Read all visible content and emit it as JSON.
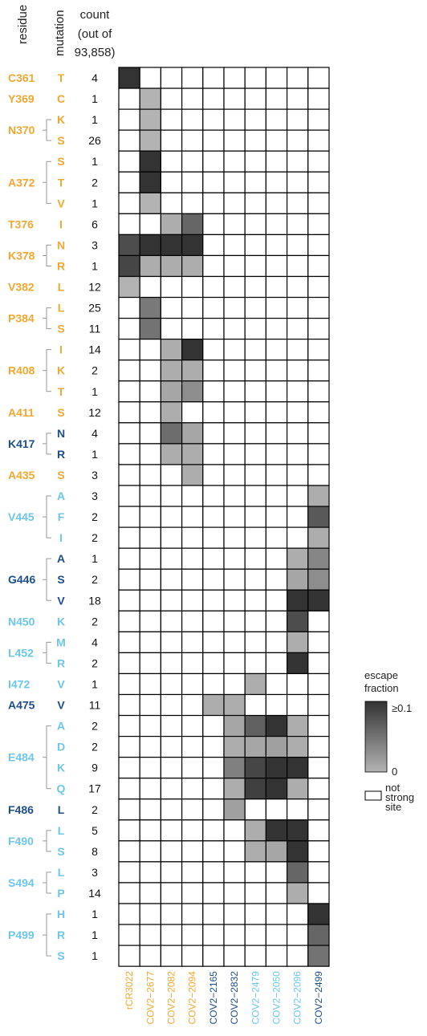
{
  "chart_data": {
    "type": "heatmap",
    "headers": {
      "residue": "residue",
      "mutation": "mutation",
      "count_lines": [
        "count",
        "(out of",
        "93,858)"
      ]
    },
    "colors": {
      "orange": "#F2A830",
      "dark_blue": "#1F4E8C",
      "light_blue": "#6CC7EA",
      "cell_border": "#000000",
      "escape_high": "#333333",
      "escape_low": "#b3b3b3"
    },
    "columns": [
      {
        "label": "rCR3022",
        "color": "orange"
      },
      {
        "label": "COV2−2677",
        "color": "orange"
      },
      {
        "label": "COV2−2082",
        "color": "orange"
      },
      {
        "label": "COV2−2094",
        "color": "orange"
      },
      {
        "label": "COV2−2165",
        "color": "dark_blue"
      },
      {
        "label": "COV2−2832",
        "color": "dark_blue"
      },
      {
        "label": "COV2−2479",
        "color": "light_blue"
      },
      {
        "label": "COV2−2050",
        "color": "light_blue"
      },
      {
        "label": "COV2−2096",
        "color": "light_blue"
      },
      {
        "label": "COV2−2499",
        "color": "dark_blue"
      }
    ],
    "groups": [
      {
        "residue": "C361",
        "color": "orange",
        "rows": [
          {
            "mutation": "T",
            "count": "4",
            "cells": [
              1,
              null,
              null,
              null,
              null,
              null,
              null,
              null,
              null,
              null
            ]
          }
        ]
      },
      {
        "residue": "Y369",
        "color": "orange",
        "rows": [
          {
            "mutation": "C",
            "count": "1",
            "cells": [
              null,
              0,
              null,
              null,
              null,
              null,
              null,
              null,
              null,
              null
            ]
          }
        ]
      },
      {
        "residue": "N370",
        "color": "orange",
        "rows": [
          {
            "mutation": "K",
            "count": "1",
            "cells": [
              null,
              0,
              null,
              null,
              null,
              null,
              null,
              null,
              null,
              null
            ]
          },
          {
            "mutation": "S",
            "count": "26",
            "cells": [
              null,
              0,
              null,
              null,
              null,
              null,
              null,
              null,
              null,
              null
            ]
          }
        ]
      },
      {
        "residue": "A372",
        "color": "orange",
        "rows": [
          {
            "mutation": "S",
            "count": "1",
            "cells": [
              null,
              1,
              null,
              null,
              null,
              null,
              null,
              null,
              null,
              null
            ]
          },
          {
            "mutation": "T",
            "count": "2",
            "cells": [
              null,
              1,
              null,
              null,
              null,
              null,
              null,
              null,
              null,
              null
            ]
          },
          {
            "mutation": "V",
            "count": "1",
            "cells": [
              null,
              0,
              null,
              null,
              null,
              null,
              null,
              null,
              null,
              null
            ]
          }
        ]
      },
      {
        "residue": "T376",
        "color": "orange",
        "rows": [
          {
            "mutation": "I",
            "count": "6",
            "cells": [
              null,
              null,
              0.05,
              0.6,
              null,
              null,
              null,
              null,
              null,
              null
            ]
          }
        ]
      },
      {
        "residue": "K378",
        "color": "orange",
        "rows": [
          {
            "mutation": "N",
            "count": "3",
            "cells": [
              0.8,
              1,
              1,
              1,
              null,
              null,
              null,
              null,
              null,
              null
            ]
          },
          {
            "mutation": "R",
            "count": "1",
            "cells": [
              0.85,
              0.05,
              0.05,
              0.05,
              null,
              null,
              null,
              null,
              null,
              null
            ]
          }
        ]
      },
      {
        "residue": "V382",
        "color": "orange",
        "rows": [
          {
            "mutation": "L",
            "count": "12",
            "cells": [
              0,
              null,
              null,
              null,
              null,
              null,
              null,
              null,
              null,
              null
            ]
          }
        ]
      },
      {
        "residue": "P384",
        "color": "orange",
        "rows": [
          {
            "mutation": "L",
            "count": "25",
            "cells": [
              null,
              0.45,
              null,
              null,
              null,
              null,
              null,
              null,
              null,
              null
            ]
          },
          {
            "mutation": "S",
            "count": "11",
            "cells": [
              null,
              0.5,
              null,
              null,
              null,
              null,
              null,
              null,
              null,
              null
            ]
          }
        ]
      },
      {
        "residue": "R408",
        "color": "orange",
        "rows": [
          {
            "mutation": "I",
            "count": "14",
            "cells": [
              null,
              null,
              0.05,
              1,
              null,
              null,
              null,
              null,
              null,
              null
            ]
          },
          {
            "mutation": "K",
            "count": "2",
            "cells": [
              null,
              null,
              0.05,
              0.05,
              null,
              null,
              null,
              null,
              null,
              null
            ]
          },
          {
            "mutation": "T",
            "count": "1",
            "cells": [
              null,
              null,
              0.1,
              0.3,
              null,
              null,
              null,
              null,
              null,
              null
            ]
          }
        ]
      },
      {
        "residue": "A411",
        "color": "orange",
        "rows": [
          {
            "mutation": "S",
            "count": "12",
            "cells": [
              null,
              null,
              0.05,
              null,
              null,
              null,
              null,
              null,
              null,
              null
            ]
          }
        ]
      },
      {
        "residue": "K417",
        "color": "dark_blue",
        "rows": [
          {
            "mutation": "N",
            "count": "4",
            "cells": [
              null,
              null,
              0.55,
              0.1,
              null,
              null,
              null,
              null,
              null,
              null
            ]
          },
          {
            "mutation": "R",
            "count": "1",
            "cells": [
              null,
              null,
              0.05,
              0.05,
              null,
              null,
              null,
              null,
              null,
              null
            ]
          }
        ]
      },
      {
        "residue": "A435",
        "color": "orange",
        "rows": [
          {
            "mutation": "S",
            "count": "3",
            "cells": [
              null,
              null,
              null,
              0.05,
              null,
              null,
              null,
              null,
              null,
              null
            ]
          }
        ]
      },
      {
        "residue": "V445",
        "color": "light_blue",
        "rows": [
          {
            "mutation": "A",
            "count": "3",
            "cells": [
              null,
              null,
              null,
              null,
              null,
              null,
              null,
              null,
              null,
              0.05
            ]
          },
          {
            "mutation": "F",
            "count": "2",
            "cells": [
              null,
              null,
              null,
              null,
              null,
              null,
              null,
              null,
              null,
              0.7
            ]
          },
          {
            "mutation": "I",
            "count": "2",
            "cells": [
              null,
              null,
              null,
              null,
              null,
              null,
              null,
              null,
              null,
              0.05
            ]
          }
        ]
      },
      {
        "residue": "G446",
        "color": "dark_blue",
        "rows": [
          {
            "mutation": "A",
            "count": "1",
            "cells": [
              null,
              null,
              null,
              null,
              null,
              null,
              null,
              null,
              0.05,
              0.35
            ]
          },
          {
            "mutation": "S",
            "count": "2",
            "cells": [
              null,
              null,
              null,
              null,
              null,
              null,
              null,
              null,
              0.1,
              0.3
            ]
          },
          {
            "mutation": "V",
            "count": "18",
            "cells": [
              null,
              null,
              null,
              null,
              null,
              null,
              null,
              null,
              1,
              1
            ]
          }
        ]
      },
      {
        "residue": "N450",
        "color": "light_blue",
        "rows": [
          {
            "mutation": "K",
            "count": "2",
            "cells": [
              null,
              null,
              null,
              null,
              null,
              null,
              null,
              null,
              0.8,
              null
            ]
          }
        ]
      },
      {
        "residue": "L452",
        "color": "light_blue",
        "rows": [
          {
            "mutation": "M",
            "count": "4",
            "cells": [
              null,
              null,
              null,
              null,
              null,
              null,
              null,
              null,
              0.05,
              null
            ]
          },
          {
            "mutation": "R",
            "count": "2",
            "cells": [
              null,
              null,
              null,
              null,
              null,
              null,
              null,
              null,
              1,
              null
            ]
          }
        ]
      },
      {
        "residue": "I472",
        "color": "light_blue",
        "rows": [
          {
            "mutation": "V",
            "count": "1",
            "cells": [
              null,
              null,
              null,
              null,
              null,
              null,
              0.05,
              null,
              null,
              null
            ]
          }
        ]
      },
      {
        "residue": "A475",
        "color": "dark_blue",
        "rows": [
          {
            "mutation": "V",
            "count": "11",
            "cells": [
              null,
              null,
              null,
              null,
              0.05,
              0.05,
              null,
              null,
              null,
              null
            ]
          }
        ]
      },
      {
        "residue": "E484",
        "color": "light_blue",
        "rows": [
          {
            "mutation": "A",
            "count": "2",
            "cells": [
              null,
              null,
              null,
              null,
              null,
              0.1,
              0.65,
              1,
              0.05,
              null
            ]
          },
          {
            "mutation": "D",
            "count": "2",
            "cells": [
              null,
              null,
              null,
              null,
              null,
              0.05,
              0.1,
              0.15,
              0.05,
              null
            ]
          },
          {
            "mutation": "K",
            "count": "9",
            "cells": [
              null,
              null,
              null,
              null,
              null,
              0.4,
              0.85,
              1,
              1,
              null
            ]
          },
          {
            "mutation": "Q",
            "count": "17",
            "cells": [
              null,
              null,
              null,
              null,
              null,
              0.05,
              0.9,
              1,
              0.05,
              null
            ]
          }
        ]
      },
      {
        "residue": "F486",
        "color": "dark_blue",
        "rows": [
          {
            "mutation": "L",
            "count": "2",
            "cells": [
              null,
              null,
              null,
              null,
              null,
              0.15,
              null,
              null,
              null,
              null
            ]
          }
        ]
      },
      {
        "residue": "F490",
        "color": "light_blue",
        "rows": [
          {
            "mutation": "L",
            "count": "5",
            "cells": [
              null,
              null,
              null,
              null,
              null,
              null,
              0.05,
              1,
              1,
              null
            ]
          },
          {
            "mutation": "S",
            "count": "8",
            "cells": [
              null,
              null,
              null,
              null,
              null,
              null,
              0.05,
              0.1,
              1,
              null
            ]
          }
        ]
      },
      {
        "residue": "S494",
        "color": "light_blue",
        "rows": [
          {
            "mutation": "L",
            "count": "3",
            "cells": [
              null,
              null,
              null,
              null,
              null,
              null,
              null,
              null,
              0.6,
              null
            ]
          },
          {
            "mutation": "P",
            "count": "14",
            "cells": [
              null,
              null,
              null,
              null,
              null,
              null,
              null,
              null,
              0.05,
              null
            ]
          }
        ]
      },
      {
        "residue": "P499",
        "color": "light_blue",
        "rows": [
          {
            "mutation": "H",
            "count": "1",
            "cells": [
              null,
              null,
              null,
              null,
              null,
              null,
              null,
              null,
              null,
              1
            ]
          },
          {
            "mutation": "R",
            "count": "1",
            "cells": [
              null,
              null,
              null,
              null,
              null,
              null,
              null,
              null,
              null,
              0.6
            ]
          },
          {
            "mutation": "S",
            "count": "1",
            "cells": [
              null,
              null,
              null,
              null,
              null,
              null,
              null,
              null,
              null,
              0.5
            ]
          }
        ]
      }
    ],
    "legend": {
      "title_lines": [
        "escape",
        "fraction"
      ],
      "max_label": "≥0.1",
      "min_label": "0",
      "not_strong_lines": [
        "not",
        "strong",
        "site"
      ]
    }
  }
}
